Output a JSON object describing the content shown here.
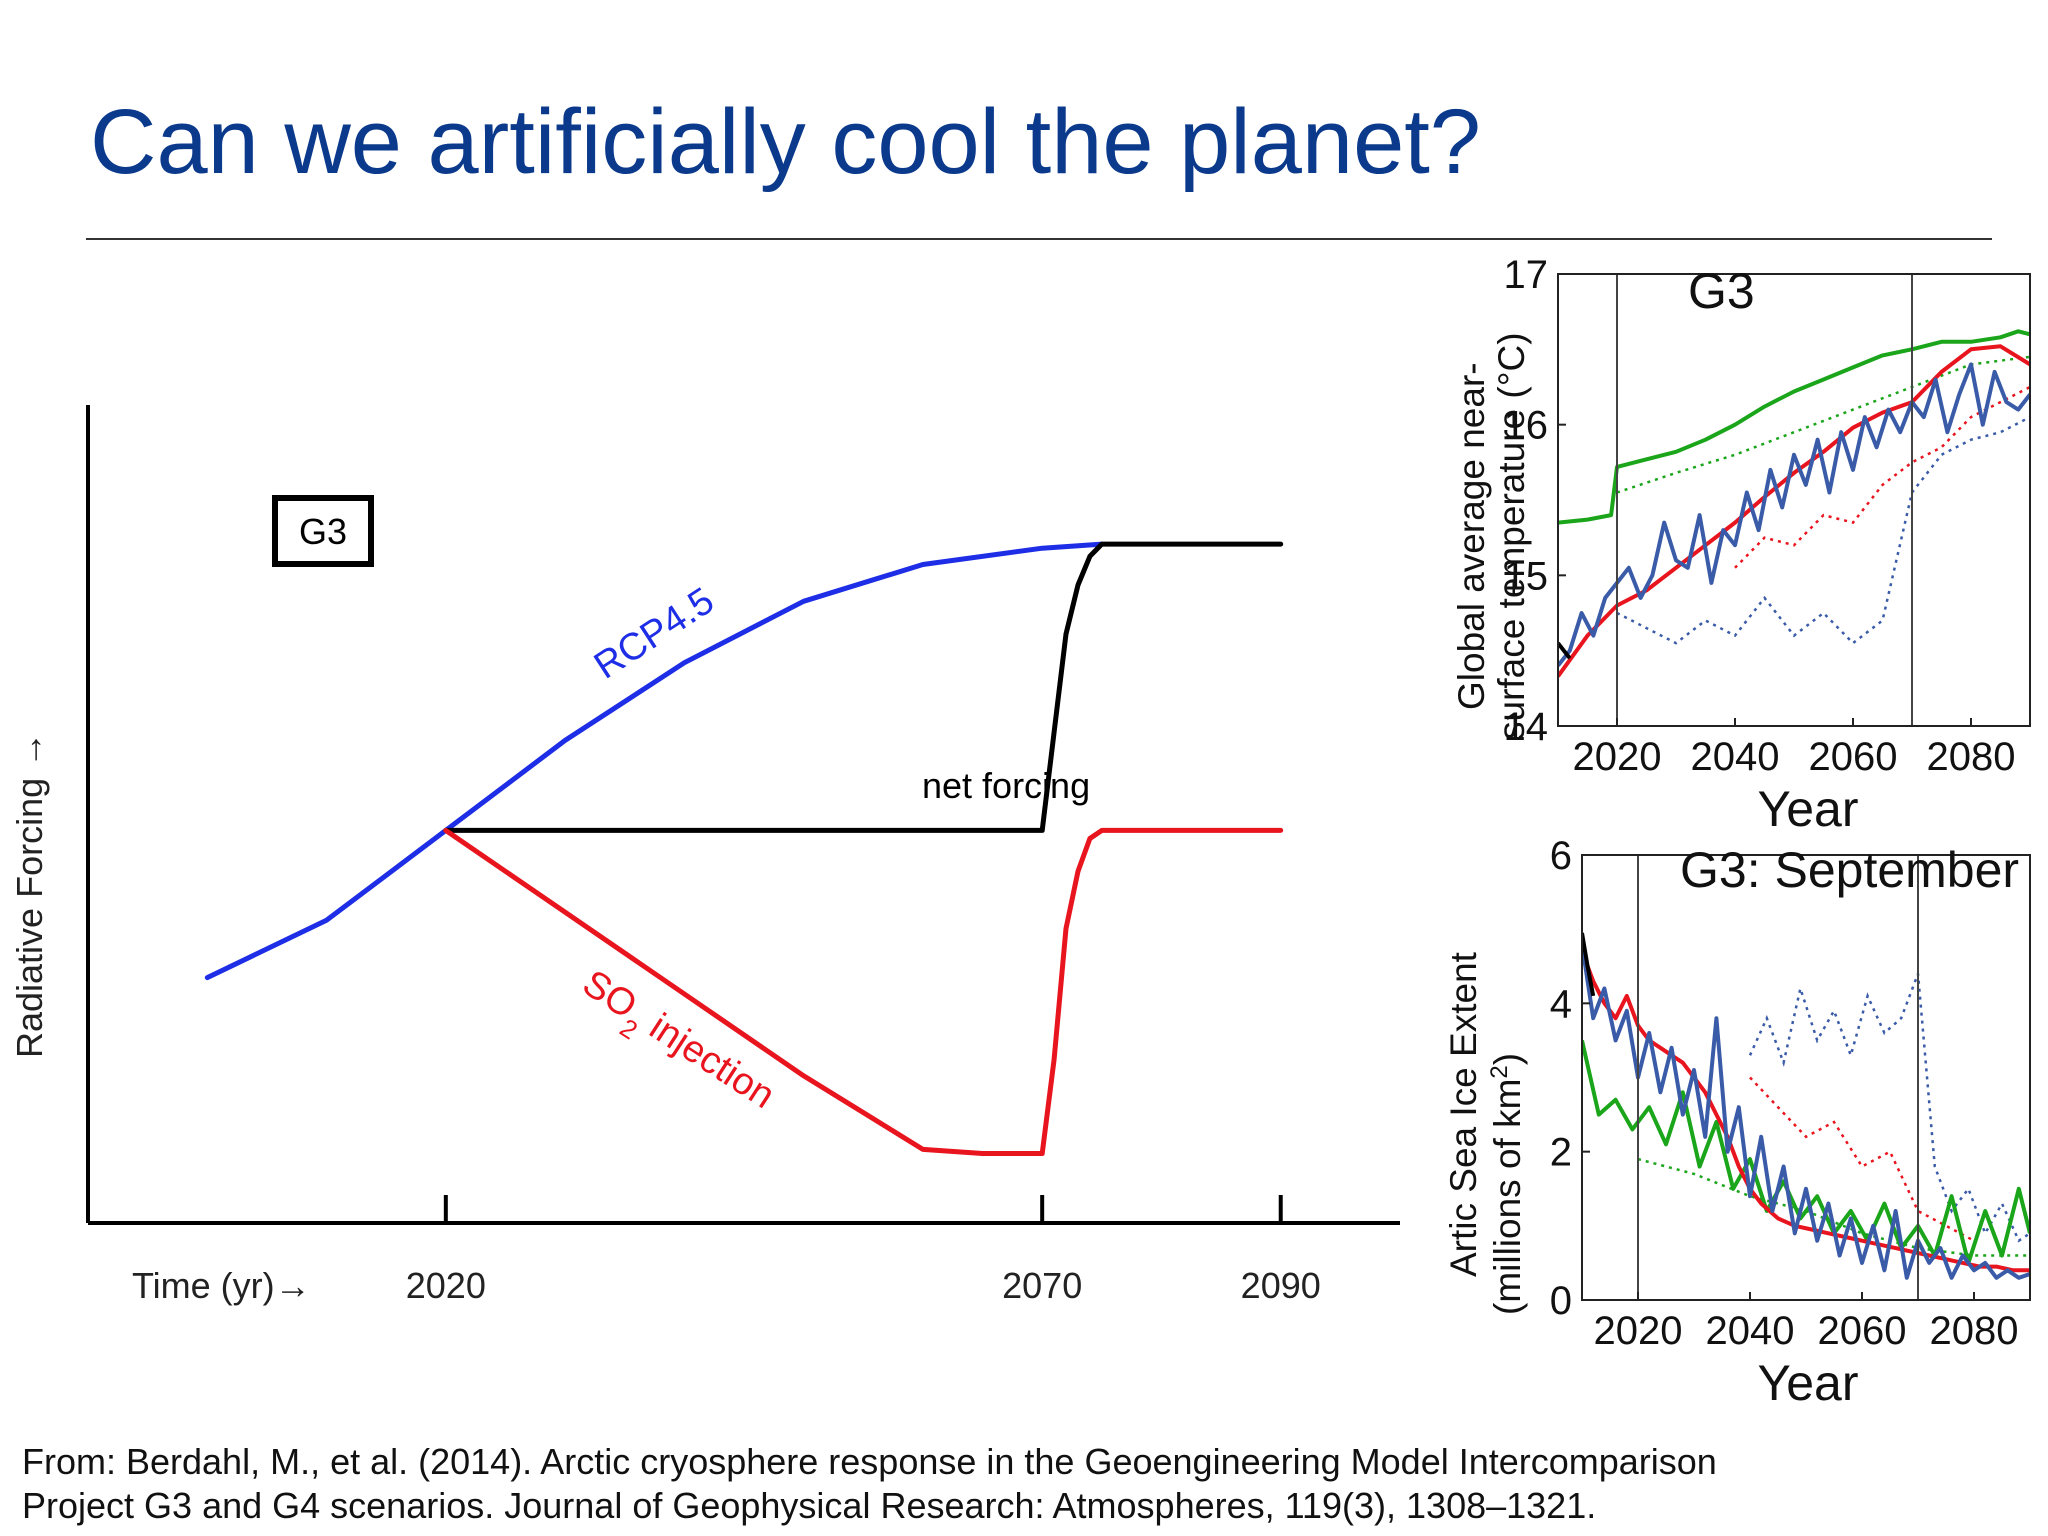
{
  "slide": {
    "title": "Can we artificially cool the planet?",
    "citation": [
      "From: Berdahl, M., et al. (2014). Arctic cryosphere response in the Geoengineering Model Intercomparison",
      "Project G3 and G4 scenarios. Journal of Geophysical Research: Atmospheres, 119(3), 1308–1321."
    ]
  },
  "chart_data": [
    {
      "type": "line",
      "box_label": "G3",
      "ylabel": "Radiative Forcing →",
      "xlabel": "Time (yr)→",
      "x_ticks": [
        2020,
        2070,
        2090
      ],
      "x_tick_labels": [
        "2020",
        "2070",
        "2090"
      ],
      "xlim": [
        1990,
        2100
      ],
      "ylim": [
        0,
        100
      ],
      "annotations": {
        "rcp": "RCP4.5",
        "net": "net forcing",
        "so2_main": "SO",
        "so2_sub": "2",
        "so2_rest": " injection"
      },
      "series": [
        {
          "name": "RCP4.5",
          "color": "#1e2ee6",
          "x": [
            2000,
            2010,
            2020,
            2030,
            2040,
            2050,
            2060,
            2070,
            2075
          ],
          "y": [
            30,
            37,
            48,
            59,
            68.5,
            76,
            80.5,
            82.5,
            83
          ]
        },
        {
          "name": "net forcing",
          "color": "#000000",
          "x": [
            2020,
            2030,
            2040,
            2050,
            2060,
            2070,
            2071,
            2072,
            2073,
            2074,
            2075,
            2090
          ],
          "y": [
            48,
            48,
            48,
            48,
            48,
            48,
            60,
            72,
            78,
            81.5,
            83,
            83
          ]
        },
        {
          "name": "SO2 injection",
          "color": "#e8141e",
          "x": [
            2020,
            2030,
            2040,
            2050,
            2060,
            2065,
            2070,
            2071,
            2072,
            2073,
            2074,
            2075,
            2090
          ],
          "y": [
            48,
            38,
            28,
            18,
            9,
            8.5,
            8.5,
            20,
            36,
            43,
            47,
            48,
            48
          ]
        }
      ]
    },
    {
      "type": "line",
      "title": "G3",
      "ylabel": "Global average near-surface temperature  (°C)",
      "xlabel": "Year",
      "xlim": [
        2010,
        2090
      ],
      "ylim": [
        14,
        17
      ],
      "y_ticks": [
        14,
        15,
        16,
        17
      ],
      "x_ticks": [
        2020,
        2040,
        2060,
        2080
      ],
      "vlines": [
        2020,
        2070
      ],
      "series": [
        {
          "name": "",
          "color": "#1aa51a",
          "x": [
            2010,
            2015,
            2019,
            2020,
            2025,
            2030,
            2035,
            2040,
            2045,
            2050,
            2055,
            2060,
            2065,
            2070,
            2075,
            2080,
            2085,
            2088,
            2090
          ],
          "y": [
            15.35,
            15.37,
            15.4,
            15.72,
            15.77,
            15.82,
            15.9,
            16.0,
            16.12,
            16.22,
            16.3,
            16.38,
            16.46,
            16.5,
            16.55,
            16.55,
            16.58,
            16.62,
            16.6
          ]
        },
        {
          "name": "",
          "color": "#e8141e",
          "x": [
            2010,
            2015,
            2020,
            2025,
            2030,
            2035,
            2040,
            2045,
            2050,
            2055,
            2060,
            2065,
            2070,
            2075,
            2080,
            2085,
            2090
          ],
          "y": [
            14.33,
            14.6,
            14.8,
            14.9,
            15.05,
            15.2,
            15.35,
            15.52,
            15.68,
            15.82,
            15.98,
            16.08,
            16.15,
            16.35,
            16.5,
            16.52,
            16.4
          ]
        },
        {
          "name": "",
          "color": "#3a5ba8",
          "x": [
            2010,
            2012,
            2014,
            2016,
            2018,
            2020,
            2022,
            2024,
            2026,
            2028,
            2030,
            2032,
            2034,
            2036,
            2038,
            2040,
            2042,
            2044,
            2046,
            2048,
            2050,
            2052,
            2054,
            2056,
            2058,
            2060,
            2062,
            2064,
            2066,
            2068,
            2070,
            2072,
            2074,
            2076,
            2078,
            2080,
            2082,
            2084,
            2086,
            2088,
            2090
          ],
          "y": [
            14.4,
            14.5,
            14.75,
            14.6,
            14.85,
            14.95,
            15.05,
            14.85,
            15.0,
            15.35,
            15.1,
            15.05,
            15.4,
            14.95,
            15.3,
            15.2,
            15.55,
            15.3,
            15.7,
            15.45,
            15.8,
            15.6,
            15.9,
            15.55,
            15.95,
            15.7,
            16.05,
            15.85,
            16.1,
            15.95,
            16.15,
            16.05,
            16.3,
            15.95,
            16.2,
            16.4,
            16.0,
            16.35,
            16.15,
            16.1,
            16.2
          ]
        },
        {
          "name": "",
          "color": "#000000",
          "x": [
            2010,
            2011,
            2012
          ],
          "y": [
            14.55,
            14.5,
            14.45
          ]
        }
      ],
      "dotted_series": [
        {
          "color": "#1aa51a",
          "x": [
            2020,
            2030,
            2040,
            2050,
            2060,
            2070,
            2080,
            2090
          ],
          "y": [
            15.55,
            15.68,
            15.8,
            15.95,
            16.1,
            16.25,
            16.4,
            16.45
          ]
        },
        {
          "color": "#e8141e",
          "x": [
            2040,
            2045,
            2050,
            2055,
            2060,
            2065,
            2070,
            2075,
            2080,
            2085,
            2090
          ],
          "y": [
            15.05,
            15.25,
            15.2,
            15.4,
            15.35,
            15.6,
            15.75,
            15.85,
            16.05,
            16.15,
            16.25
          ]
        },
        {
          "color": "#3a5ba8",
          "x": [
            2020,
            2025,
            2030,
            2035,
            2040,
            2045,
            2050,
            2055,
            2060,
            2065,
            2070,
            2075,
            2080,
            2085,
            2090
          ],
          "y": [
            14.75,
            14.65,
            14.55,
            14.7,
            14.6,
            14.85,
            14.6,
            14.75,
            14.55,
            14.7,
            15.55,
            15.8,
            15.9,
            15.95,
            16.05
          ]
        }
      ]
    },
    {
      "type": "line",
      "title": "G3: September",
      "ylabel": "Artic Sea Ice Extent",
      "ylabel2_main": "(millions of km",
      "ylabel2_sup": "2",
      "ylabel2_end": ")",
      "xlabel": "Year",
      "xlim": [
        2010,
        2090
      ],
      "ylim": [
        0,
        6
      ],
      "y_ticks": [
        0,
        2,
        4,
        6
      ],
      "x_ticks": [
        2020,
        2040,
        2060,
        2080
      ],
      "vlines": [
        2020,
        2070
      ],
      "series": [
        {
          "name": "",
          "color": "#1aa51a",
          "x": [
            2010,
            2013,
            2016,
            2019,
            2022,
            2025,
            2028,
            2031,
            2034,
            2037,
            2040,
            2043,
            2046,
            2049,
            2052,
            2055,
            2058,
            2061,
            2064,
            2067,
            2070,
            2073,
            2076,
            2079,
            2082,
            2085,
            2088,
            2090
          ],
          "y": [
            3.5,
            2.5,
            2.7,
            2.3,
            2.6,
            2.1,
            2.8,
            1.8,
            2.4,
            1.5,
            1.9,
            1.2,
            1.6,
            1.1,
            1.4,
            0.9,
            1.2,
            0.8,
            1.3,
            0.7,
            1.0,
            0.6,
            1.4,
            0.5,
            1.2,
            0.6,
            1.5,
            0.9
          ]
        },
        {
          "name": "",
          "color": "#e8141e",
          "x": [
            2010,
            2012,
            2014,
            2016,
            2018,
            2020,
            2022,
            2024,
            2026,
            2028,
            2030,
            2032,
            2034,
            2036,
            2038,
            2040,
            2042,
            2045,
            2048,
            2051,
            2054,
            2057,
            2060,
            2063,
            2066,
            2069,
            2072,
            2075,
            2078,
            2081,
            2084,
            2087,
            2090
          ],
          "y": [
            4.7,
            4.3,
            4.0,
            3.8,
            4.1,
            3.7,
            3.5,
            3.4,
            3.3,
            3.2,
            3.0,
            2.8,
            2.5,
            2.2,
            1.8,
            1.5,
            1.3,
            1.1,
            1.0,
            0.95,
            0.9,
            0.85,
            0.8,
            0.75,
            0.7,
            0.65,
            0.6,
            0.55,
            0.5,
            0.45,
            0.45,
            0.4,
            0.4
          ]
        },
        {
          "name": "",
          "color": "#3a5ba8",
          "x": [
            2010,
            2012,
            2014,
            2016,
            2018,
            2020,
            2022,
            2024,
            2026,
            2028,
            2030,
            2032,
            2034,
            2036,
            2038,
            2040,
            2042,
            2044,
            2046,
            2048,
            2050,
            2052,
            2054,
            2056,
            2058,
            2060,
            2062,
            2064,
            2066,
            2068,
            2070,
            2072,
            2074,
            2076,
            2078,
            2080,
            2082,
            2084,
            2086,
            2088,
            2090
          ],
          "y": [
            4.8,
            3.8,
            4.2,
            3.5,
            3.9,
            3.0,
            3.6,
            2.8,
            3.4,
            2.5,
            3.1,
            2.2,
            3.8,
            2.0,
            2.6,
            1.4,
            2.2,
            1.2,
            1.8,
            0.9,
            1.5,
            0.8,
            1.3,
            0.6,
            1.1,
            0.5,
            1.0,
            0.4,
            1.2,
            0.3,
            0.8,
            0.5,
            0.7,
            0.3,
            0.6,
            0.4,
            0.5,
            0.3,
            0.4,
            0.3,
            0.35
          ]
        },
        {
          "name": "",
          "color": "#000000",
          "x": [
            2010,
            2011,
            2012
          ],
          "y": [
            4.95,
            4.5,
            4.1
          ]
        }
      ],
      "dotted_series": [
        {
          "color": "#3a5ba8",
          "x": [
            2040,
            2043,
            2046,
            2049,
            2052,
            2055,
            2058,
            2061,
            2064,
            2067,
            2070,
            2073,
            2076,
            2079,
            2082,
            2085,
            2088,
            2090
          ],
          "y": [
            3.3,
            3.8,
            3.2,
            4.2,
            3.5,
            3.9,
            3.3,
            4.1,
            3.6,
            3.8,
            4.4,
            1.8,
            1.2,
            1.5,
            0.9,
            1.3,
            0.8,
            0.9
          ]
        },
        {
          "color": "#e8141e",
          "x": [
            2040,
            2045,
            2050,
            2055,
            2060,
            2065,
            2070,
            2075,
            2080
          ],
          "y": [
            3.0,
            2.6,
            2.2,
            2.4,
            1.8,
            2.0,
            1.2,
            1.0,
            0.8
          ]
        },
        {
          "color": "#1aa51a",
          "x": [
            2020,
            2030,
            2040,
            2050,
            2060,
            2070,
            2080,
            2090
          ],
          "y": [
            1.9,
            1.7,
            1.4,
            1.2,
            0.9,
            0.7,
            0.6,
            0.6
          ]
        }
      ]
    }
  ]
}
